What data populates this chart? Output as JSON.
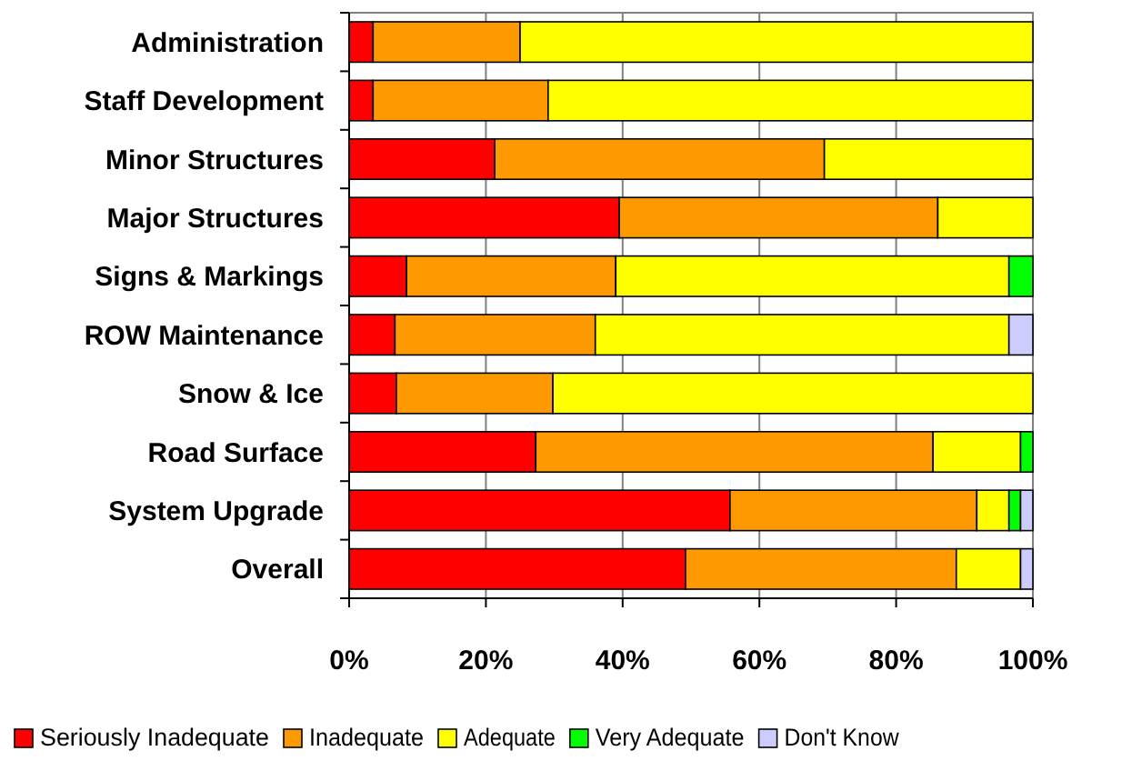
{
  "chart_data": {
    "type": "bar",
    "orientation": "horizontal",
    "stacked": true,
    "categories": [
      "Administration",
      "Staff Development",
      "Minor Structures",
      "Major Structures",
      "Signs & Markings",
      "ROW Maintenance",
      "Snow & Ice",
      "Road Surface",
      "System Upgrade",
      "Overall"
    ],
    "series": [
      {
        "name": "Seriously Inadequate",
        "color": "#ff0000",
        "values": [
          3.5,
          3.5,
          21.3,
          39.5,
          8.4,
          6.7,
          6.9,
          27.3,
          55.7,
          49.2
        ]
      },
      {
        "name": "Inadequate",
        "color": "#ff9900",
        "values": [
          21.5,
          25.6,
          48.2,
          46.6,
          30.6,
          29.3,
          22.9,
          58.1,
          36.1,
          39.6
        ]
      },
      {
        "name": "Adequate",
        "color": "#ffff00",
        "values": [
          75.0,
          70.9,
          30.5,
          13.9,
          57.5,
          60.5,
          70.2,
          12.8,
          4.7,
          9.4
        ]
      },
      {
        "name": "Very Adequate",
        "color": "#00ff00",
        "values": [
          0,
          0,
          0,
          0,
          3.5,
          0,
          0,
          1.8,
          1.7,
          0
        ]
      },
      {
        "name": "Don't Know",
        "color": "#ccccff",
        "values": [
          0,
          0,
          0,
          0,
          0,
          3.5,
          0,
          0,
          1.8,
          1.8
        ]
      }
    ],
    "xlim": [
      0,
      100
    ],
    "xticks": [
      {
        "value": 0,
        "label": "0%"
      },
      {
        "value": 20,
        "label": "20%"
      },
      {
        "value": 40,
        "label": "40%"
      },
      {
        "value": 60,
        "label": "60%"
      },
      {
        "value": 80,
        "label": "80%"
      },
      {
        "value": 100,
        "label": "100%"
      }
    ],
    "grid": "x",
    "legend": "bottom"
  }
}
